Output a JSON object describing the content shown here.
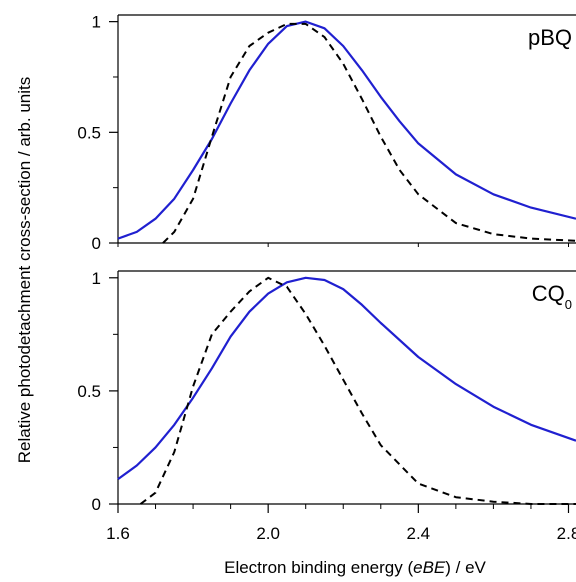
{
  "chart_data": {
    "type": "line",
    "xlabel_parts": [
      "Electron binding energy (",
      "eBE",
      ") / eV"
    ],
    "ylabel": "Relative photodetachment cross-section / arb. units",
    "xlim": [
      1.6,
      2.82
    ],
    "x_ticks": [
      1.6,
      2.0,
      2.4,
      2.8
    ],
    "x_tick_labels": [
      "1.6",
      "2.0",
      "2.4",
      "2.8"
    ],
    "panels": [
      {
        "label_main": "pBQ",
        "label_sub": "",
        "ylim": [
          0,
          1.03
        ],
        "y_ticks": [
          0,
          0.5,
          1
        ],
        "y_tick_labels": [
          "0",
          "0.5",
          "1"
        ],
        "series": [
          {
            "color": "#2020d0",
            "style": "solid",
            "x": [
              1.6,
              1.65,
              1.7,
              1.75,
              1.8,
              1.85,
              1.9,
              1.95,
              2.0,
              2.05,
              2.1,
              2.15,
              2.2,
              2.25,
              2.3,
              2.35,
              2.4,
              2.5,
              2.6,
              2.7,
              2.82
            ],
            "y": [
              0.02,
              0.05,
              0.11,
              0.2,
              0.33,
              0.47,
              0.63,
              0.78,
              0.9,
              0.98,
              1.0,
              0.97,
              0.89,
              0.78,
              0.66,
              0.55,
              0.45,
              0.31,
              0.22,
              0.16,
              0.11
            ]
          },
          {
            "color": "#000000",
            "style": "dashed",
            "x": [
              1.72,
              1.75,
              1.8,
              1.85,
              1.9,
              1.95,
              2.0,
              2.05,
              2.1,
              2.15,
              2.2,
              2.25,
              2.3,
              2.35,
              2.4,
              2.5,
              2.6,
              2.7,
              2.82
            ],
            "y": [
              0.0,
              0.05,
              0.2,
              0.48,
              0.75,
              0.89,
              0.95,
              0.99,
              0.99,
              0.93,
              0.81,
              0.65,
              0.48,
              0.33,
              0.22,
              0.09,
              0.04,
              0.02,
              0.01
            ]
          }
        ]
      },
      {
        "label_main": "CQ",
        "label_sub": "0",
        "ylim": [
          0,
          1.03
        ],
        "y_ticks": [
          0,
          0.5,
          1
        ],
        "y_tick_labels": [
          "0",
          "0.5",
          "1"
        ],
        "series": [
          {
            "color": "#2020d0",
            "style": "solid",
            "x": [
              1.6,
              1.65,
              1.7,
              1.75,
              1.8,
              1.85,
              1.9,
              1.95,
              2.0,
              2.05,
              2.1,
              2.15,
              2.2,
              2.25,
              2.3,
              2.4,
              2.5,
              2.6,
              2.7,
              2.82
            ],
            "y": [
              0.11,
              0.17,
              0.25,
              0.35,
              0.47,
              0.6,
              0.74,
              0.85,
              0.93,
              0.98,
              1.0,
              0.99,
              0.95,
              0.88,
              0.8,
              0.65,
              0.53,
              0.43,
              0.35,
              0.28
            ]
          },
          {
            "color": "#000000",
            "style": "dashed",
            "x": [
              1.66,
              1.7,
              1.75,
              1.8,
              1.85,
              1.9,
              1.95,
              2.0,
              2.05,
              2.1,
              2.15,
              2.2,
              2.25,
              2.3,
              2.4,
              2.5,
              2.6,
              2.7,
              2.82
            ],
            "y": [
              0.0,
              0.05,
              0.23,
              0.52,
              0.75,
              0.85,
              0.94,
              1.0,
              0.96,
              0.84,
              0.7,
              0.55,
              0.4,
              0.26,
              0.09,
              0.03,
              0.01,
              0.0,
              0.0
            ]
          }
        ]
      }
    ]
  }
}
